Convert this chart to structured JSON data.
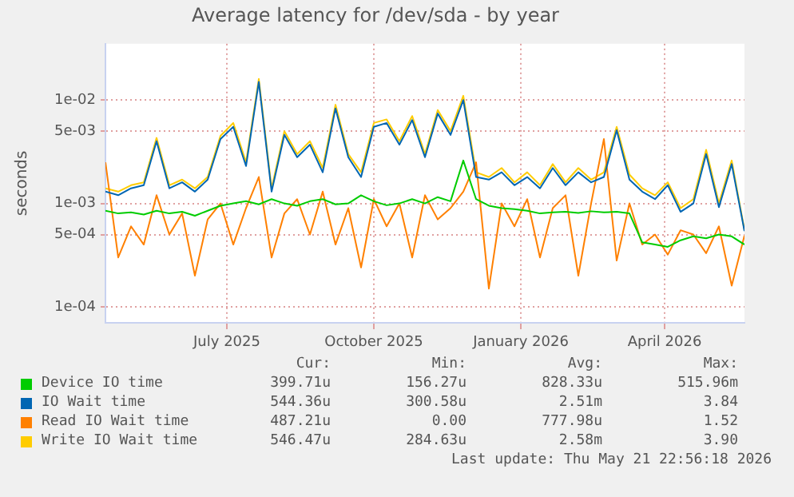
{
  "chart_data": {
    "type": "line",
    "title": "Average latency for /dev/sda - by year",
    "ylabel": "seconds",
    "log": "y",
    "grid": true,
    "legend": "bottom",
    "marker": "none",
    "line_style": "solid",
    "x": [
      "2025-04-16",
      "2025-04-24",
      "2025-05-02",
      "2025-05-10",
      "2025-05-18",
      "2025-05-26",
      "2025-06-03",
      "2025-06-11",
      "2025-06-19",
      "2025-06-27",
      "2025-07-05",
      "2025-07-13",
      "2025-07-21",
      "2025-07-29",
      "2025-08-06",
      "2025-08-14",
      "2025-08-22",
      "2025-08-30",
      "2025-09-07",
      "2025-09-15",
      "2025-09-23",
      "2025-10-01",
      "2025-10-09",
      "2025-10-17",
      "2025-10-25",
      "2025-11-02",
      "2025-11-10",
      "2025-11-18",
      "2025-11-26",
      "2025-12-04",
      "2025-12-12",
      "2025-12-20",
      "2025-12-28",
      "2026-01-05",
      "2026-01-13",
      "2026-01-21",
      "2026-01-29",
      "2026-02-06",
      "2026-02-14",
      "2026-02-22",
      "2026-03-02",
      "2026-03-10",
      "2026-03-18",
      "2026-03-26",
      "2026-04-03",
      "2026-04-11",
      "2026-04-19",
      "2026-04-27",
      "2026-05-05",
      "2026-05-13",
      "2026-05-21"
    ],
    "xlim": [
      "2025-04-16",
      "2026-05-21"
    ],
    "xticks": [
      {
        "value": "2025-07-01",
        "label": "July 2025"
      },
      {
        "value": "2025-10-01",
        "label": "October 2025"
      },
      {
        "value": "2026-01-01",
        "label": "January 2026"
      },
      {
        "value": "2026-04-01",
        "label": "April 2026"
      }
    ],
    "ylim": [
      7.5e-05,
      0.035
    ],
    "yticks": [
      {
        "value": 0.0001,
        "label": "1e-04"
      },
      {
        "value": 0.0005,
        "label": "5e-04"
      },
      {
        "value": 0.001,
        "label": "1e-03"
      },
      {
        "value": 0.005,
        "label": "5e-03"
      },
      {
        "value": 0.01,
        "label": "1e-02"
      }
    ],
    "series": [
      {
        "name": "Device IO time",
        "color": "#00cc00",
        "values": [
          0.00085,
          0.0008,
          0.00082,
          0.00078,
          0.00085,
          0.0008,
          0.00083,
          0.00076,
          0.00085,
          0.00095,
          0.001,
          0.00105,
          0.00098,
          0.0011,
          0.001,
          0.00095,
          0.00105,
          0.0011,
          0.00098,
          0.001,
          0.0012,
          0.00105,
          0.00096,
          0.001,
          0.0011,
          0.001,
          0.00115,
          0.00105,
          0.0026,
          0.0011,
          0.00095,
          0.0009,
          0.00088,
          0.00085,
          0.0008,
          0.00082,
          0.00083,
          0.00081,
          0.00084,
          0.00082,
          0.00083,
          0.0008,
          0.00042,
          0.0004,
          0.00038,
          0.00044,
          0.00048,
          0.00046,
          0.0005,
          0.00048,
          0.0004
        ]
      },
      {
        "name": "IO Wait time",
        "color": "#0066b3",
        "values": [
          0.0013,
          0.0012,
          0.0014,
          0.0015,
          0.004,
          0.0014,
          0.0016,
          0.0013,
          0.0017,
          0.0042,
          0.0055,
          0.0023,
          0.015,
          0.0013,
          0.0046,
          0.0028,
          0.0037,
          0.002,
          0.0083,
          0.0028,
          0.0018,
          0.0055,
          0.006,
          0.0037,
          0.0064,
          0.0028,
          0.0074,
          0.0046,
          0.01,
          0.0018,
          0.0017,
          0.002,
          0.0015,
          0.0018,
          0.0014,
          0.0022,
          0.0015,
          0.002,
          0.0016,
          0.0018,
          0.0051,
          0.0017,
          0.0013,
          0.0011,
          0.0015,
          0.00083,
          0.001,
          0.003,
          0.00092,
          0.0024,
          0.00054
        ]
      },
      {
        "name": "Read IO Wait time",
        "color": "#ff8000",
        "values": [
          0.0025,
          0.0003,
          0.0006,
          0.0004,
          0.0012,
          0.0005,
          0.0008,
          0.0002,
          0.0007,
          0.001,
          0.0004,
          0.0009,
          0.0018,
          0.0003,
          0.0008,
          0.0011,
          0.0005,
          0.0013,
          0.0004,
          0.0009,
          0.00024,
          0.0011,
          0.0006,
          0.001,
          0.0003,
          0.0012,
          0.0007,
          0.0009,
          0.0013,
          0.0025,
          0.00015,
          0.001,
          0.0006,
          0.0011,
          0.0003,
          0.0009,
          0.0012,
          0.0002,
          0.001,
          0.0042,
          0.00028,
          0.001,
          0.0004,
          0.0005,
          0.00032,
          0.00055,
          0.0005,
          0.00033,
          0.0006,
          0.00016,
          0.00049
        ]
      },
      {
        "name": "Write IO Wait time",
        "color": "#ffcc00",
        "values": [
          0.0014,
          0.0013,
          0.0015,
          0.0016,
          0.0043,
          0.0015,
          0.0017,
          0.0014,
          0.0018,
          0.0045,
          0.006,
          0.0025,
          0.016,
          0.0014,
          0.005,
          0.003,
          0.004,
          0.0022,
          0.009,
          0.003,
          0.002,
          0.006,
          0.0065,
          0.004,
          0.007,
          0.003,
          0.008,
          0.005,
          0.011,
          0.002,
          0.0018,
          0.0022,
          0.0016,
          0.002,
          0.0015,
          0.0024,
          0.0016,
          0.0022,
          0.0017,
          0.002,
          0.0055,
          0.0019,
          0.0014,
          0.0012,
          0.0016,
          0.0009,
          0.0011,
          0.0033,
          0.001,
          0.0026,
          0.00055
        ]
      }
    ],
    "annotations": [
      "Cur:",
      "Min:",
      "Avg:",
      "Max:",
      "399.71u",
      "156.27u",
      "828.33u",
      "515.96m",
      "544.36u",
      "300.58u",
      "2.51m",
      "3.84",
      "487.21u",
      "0.00",
      "777.98u",
      "1.52",
      "546.47u",
      "284.63u",
      "2.58m",
      "3.90",
      "Last update: Thu May 21 22:56:18 2026"
    ]
  }
}
